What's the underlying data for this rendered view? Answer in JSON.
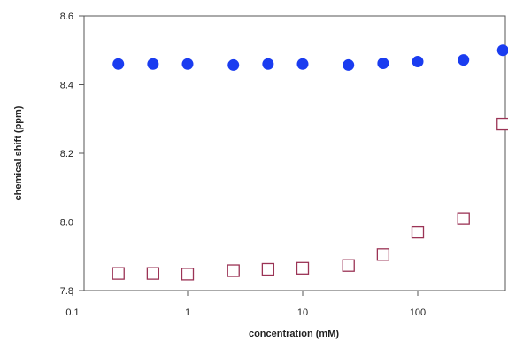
{
  "chart_data": {
    "type": "scatter",
    "title": "",
    "xlabel": "concentration (mM)",
    "ylabel": "chemical shift (ppm)",
    "x_scale": "log",
    "xlim": [
      0.1,
      600
    ],
    "ylim": [
      7.8,
      8.6
    ],
    "x_ticks": [
      "0.1",
      "1",
      "10",
      "100"
    ],
    "y_ticks": [
      "7.8",
      "8.0",
      "8.2",
      "8.4",
      "8.6"
    ],
    "grid": false,
    "legend": "none",
    "series": [
      {
        "marker": "filled-circle",
        "color": "#1a3cf0",
        "x": [
          0.25,
          0.5,
          1,
          2.5,
          5,
          10,
          25,
          50,
          100,
          250,
          550
        ],
        "y": [
          8.46,
          8.46,
          8.46,
          8.457,
          8.46,
          8.46,
          8.457,
          8.462,
          8.467,
          8.472,
          8.5
        ]
      },
      {
        "marker": "open-square",
        "color": "#9b3355",
        "x": [
          0.25,
          0.5,
          1,
          2.5,
          5,
          10,
          25,
          50,
          100,
          250,
          550
        ],
        "y": [
          7.85,
          7.85,
          7.848,
          7.858,
          7.862,
          7.865,
          7.873,
          7.905,
          7.97,
          8.01,
          8.285
        ]
      }
    ]
  }
}
